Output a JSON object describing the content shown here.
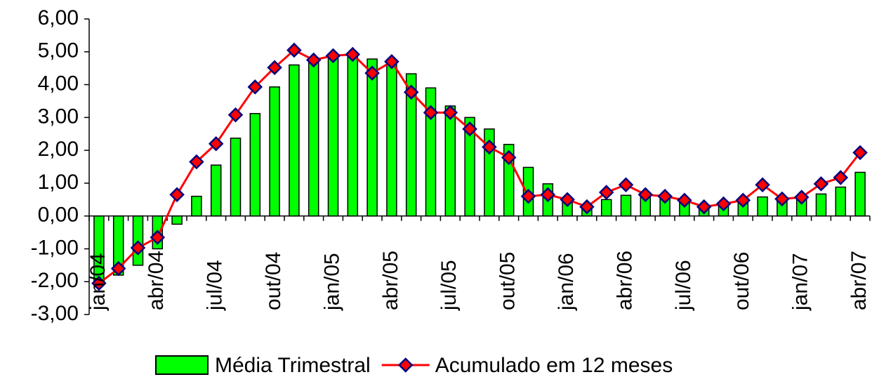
{
  "chart_data": {
    "type": "bar-line",
    "categories": [
      "jan/04",
      null,
      null,
      "abr/04",
      null,
      null,
      "jul/04",
      null,
      null,
      "out/04",
      null,
      null,
      "jan/05",
      null,
      null,
      "abr/05",
      null,
      null,
      "jul/05",
      null,
      null,
      "out/05",
      null,
      null,
      "jan/06",
      null,
      null,
      "abr/06",
      null,
      null,
      "jul/06",
      null,
      null,
      "out/06",
      null,
      null,
      "jan/07",
      null,
      null,
      "abr/07"
    ],
    "series": [
      {
        "name": "Média Trimestral",
        "kind": "bar",
        "color": "#00ff00",
        "values": [
          -2.0,
          -1.8,
          -1.5,
          -1.0,
          -0.25,
          0.6,
          1.55,
          2.37,
          3.12,
          3.93,
          4.6,
          4.8,
          4.85,
          4.9,
          4.78,
          4.7,
          4.33,
          3.9,
          3.35,
          3.0,
          2.65,
          2.18,
          1.48,
          0.98,
          0.55,
          0.3,
          0.5,
          0.63,
          0.65,
          0.6,
          0.5,
          0.3,
          0.35,
          0.45,
          0.58,
          0.55,
          0.6,
          0.67,
          0.88,
          1.33
        ]
      },
      {
        "name": "Acumulado em 12 meses",
        "kind": "line",
        "color": "#ff0000",
        "marker_color": "#000080",
        "values": [
          -2.05,
          -1.6,
          -0.97,
          -0.65,
          0.65,
          1.65,
          2.2,
          3.08,
          3.93,
          4.52,
          5.05,
          4.75,
          4.88,
          4.92,
          4.35,
          4.7,
          3.77,
          3.15,
          3.15,
          2.65,
          2.1,
          1.78,
          0.6,
          0.65,
          0.5,
          0.28,
          0.72,
          0.95,
          0.65,
          0.6,
          0.48,
          0.28,
          0.37,
          0.48,
          0.95,
          0.52,
          0.57,
          0.98,
          1.17,
          1.93
        ]
      }
    ],
    "ylim": [
      -3,
      6
    ],
    "yticks": [
      {
        "value": -3,
        "label": "-3,00"
      },
      {
        "value": -2,
        "label": "-2,00"
      },
      {
        "value": -1,
        "label": "-1,00"
      },
      {
        "value": 0,
        "label": "0,00"
      },
      {
        "value": 1,
        "label": "1,00"
      },
      {
        "value": 2,
        "label": "2,00"
      },
      {
        "value": 3,
        "label": "3,00"
      },
      {
        "value": 4,
        "label": "4,00"
      },
      {
        "value": 5,
        "label": "5,00"
      },
      {
        "value": 6,
        "label": "6,00"
      }
    ],
    "grid": false,
    "legend": "bottom"
  }
}
